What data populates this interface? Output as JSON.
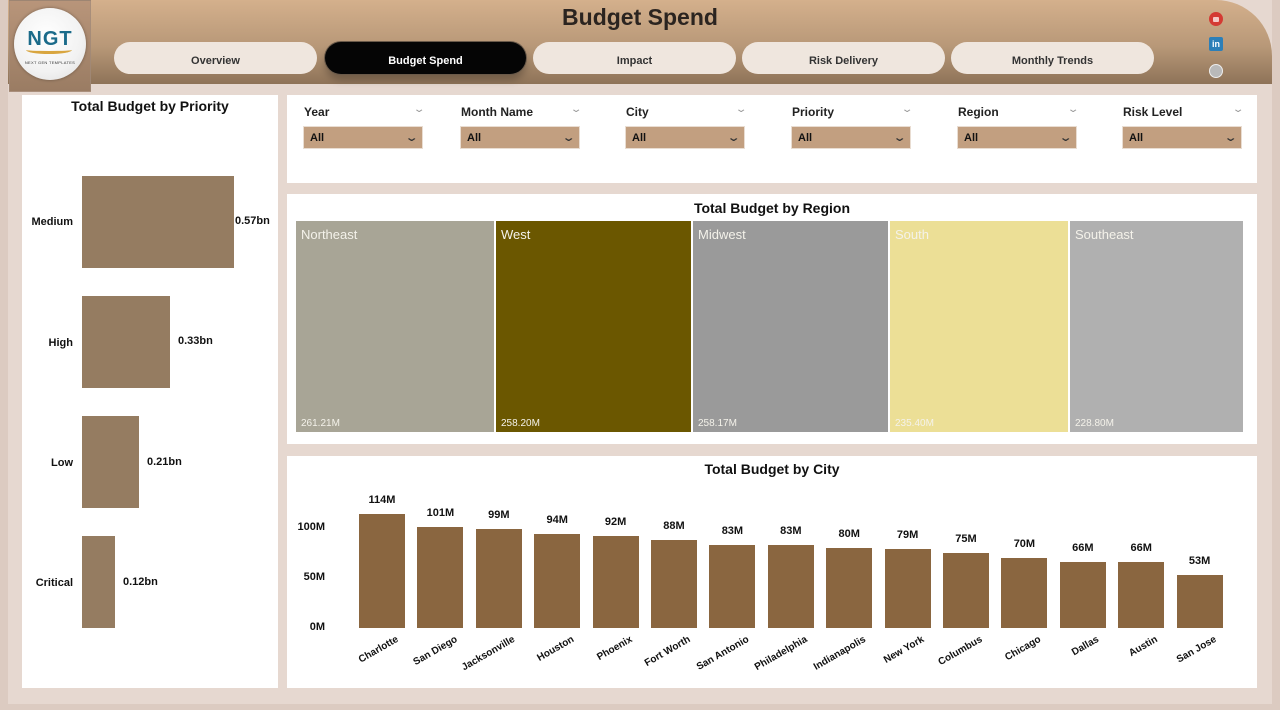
{
  "header": {
    "title": "Budget Spend",
    "logo": {
      "text": "NGT",
      "subtext": "NEXT GEN TEMPLATES"
    },
    "tabs": [
      {
        "label": "Overview",
        "active": false
      },
      {
        "label": "Budget Spend",
        "active": true
      },
      {
        "label": "Impact",
        "active": false
      },
      {
        "label": "Risk Delivery",
        "active": false
      },
      {
        "label": "Monthly Trends",
        "active": false
      }
    ],
    "social_icons": [
      "youtube-icon",
      "linkedin-icon",
      "globe-icon"
    ],
    "linkedin_glyph": "in"
  },
  "filters": [
    {
      "label": "Year",
      "value": "All"
    },
    {
      "label": "Month Name",
      "value": "All"
    },
    {
      "label": "City",
      "value": "All"
    },
    {
      "label": "Priority",
      "value": "All"
    },
    {
      "label": "Region",
      "value": "All"
    },
    {
      "label": "Risk Level",
      "value": "All"
    }
  ],
  "colors": {
    "header_top": "#d4b08c",
    "header_bottom": "#8e7358",
    "priority_bar": "#957c61",
    "city_bar": "#8a6640",
    "filter_bg": "#c29f80",
    "active_tab": "#050505"
  },
  "chart_data": [
    {
      "type": "bar",
      "orientation": "horizontal",
      "title": "Total Budget by Priority",
      "categories": [
        "Medium",
        "High",
        "Low",
        "Critical"
      ],
      "values": [
        0.57,
        0.33,
        0.21,
        0.12
      ],
      "labels": [
        "0.57bn",
        "0.33bn",
        "0.21bn",
        "0.12bn"
      ],
      "unit": "bn",
      "grid": false
    },
    {
      "type": "treemap",
      "title": "Total Budget by Region",
      "categories": [
        "Northeast",
        "West",
        "Midwest",
        "South",
        "Southeast"
      ],
      "values": [
        261.21,
        258.2,
        258.17,
        235.4,
        228.8
      ],
      "labels": [
        "261.21M",
        "258.20M",
        "258.17M",
        "235.40M",
        "228.80M"
      ],
      "colors": [
        "#a8a596",
        "#6b5700",
        "#9a9a9a",
        "#ecdf96",
        "#b0b0b0"
      ],
      "unit": "M"
    },
    {
      "type": "bar",
      "orientation": "vertical",
      "title": "Total Budget by City",
      "categories": [
        "Charlotte",
        "San Diego",
        "Jacksonville",
        "Houston",
        "Phoenix",
        "Fort Worth",
        "San Antonio",
        "Philadelphia",
        "Indianapolis",
        "New York",
        "Columbus",
        "Chicago",
        "Dallas",
        "Austin",
        "San Jose"
      ],
      "values": [
        114,
        101,
        99,
        94,
        92,
        88,
        83,
        83,
        80,
        79,
        75,
        70,
        66,
        66,
        53
      ],
      "labels": [
        "114M",
        "101M",
        "99M",
        "94M",
        "92M",
        "88M",
        "83M",
        "83M",
        "80M",
        "79M",
        "75M",
        "70M",
        "66M",
        "66M",
        "53M"
      ],
      "yticks": [
        "0M",
        "50M",
        "100M"
      ],
      "ylim": [
        0,
        120
      ],
      "xlabel": "",
      "ylabel": "",
      "grid": false
    }
  ]
}
